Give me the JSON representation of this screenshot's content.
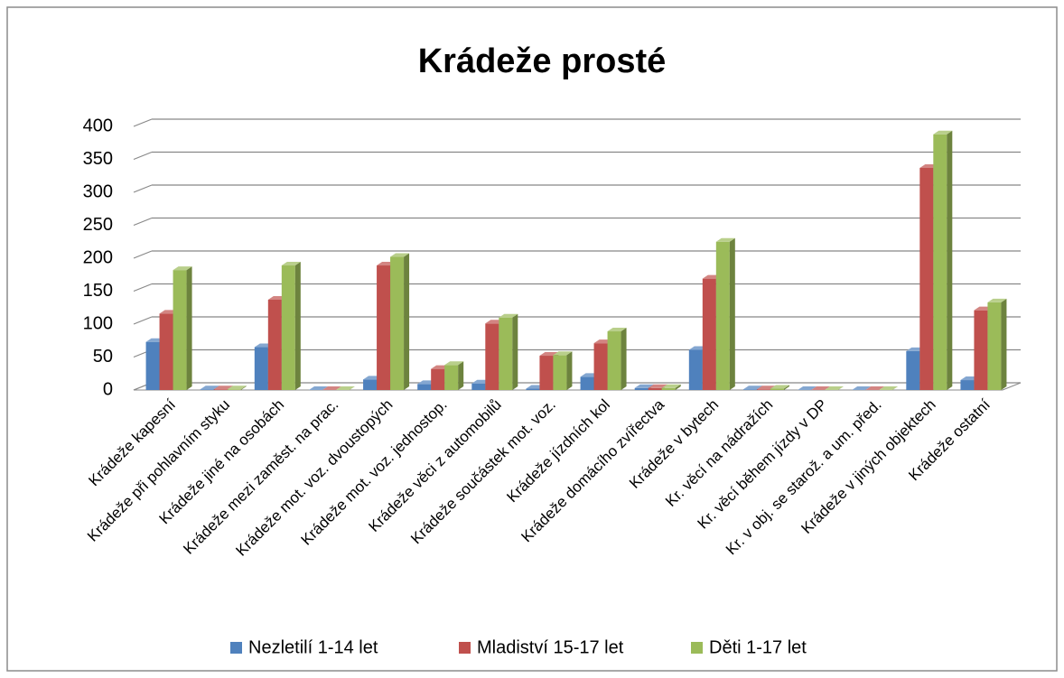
{
  "chart_data": {
    "type": "bar3d",
    "title": "Krádeže prosté",
    "categories": [
      "Krádeže kapesní",
      "Krádeže při pohlavním styku",
      "Krádeže jiné na osobách",
      "Krádeže mezi zaměst. na prac.",
      "Krádeže mot. voz. dvoustopých",
      "Krádeže mot. voz. jednostop.",
      "Krádeže věci z automobilů",
      "Krádeže součástek mot. voz.",
      "Krádeže jízdních kol",
      "Krádeže domácího zvířectva",
      "Krádeže v bytech",
      "Kr. věcí na nádražích",
      "Kr. věcí během jízdy v DP",
      "Kr. v obj. se starož. a um. před.",
      "Krádeže v jiných objektech",
      "Krádeže ostatní"
    ],
    "series": [
      {
        "name": "Nezletilí 1-14 let",
        "color": "#4f81bd",
        "values": [
          73,
          1,
          65,
          0,
          16,
          9,
          10,
          2,
          20,
          3,
          61,
          1,
          0,
          0,
          59,
          15
        ]
      },
      {
        "name": "Mladiství 15-17 let",
        "color": "#c0504d",
        "values": [
          116,
          1,
          137,
          0,
          189,
          32,
          101,
          52,
          71,
          3,
          169,
          1,
          0,
          0,
          337,
          121
        ]
      },
      {
        "name": "Děti 1-17 let",
        "color": "#9bbb59",
        "values": [
          182,
          1,
          189,
          0,
          202,
          38,
          110,
          53,
          89,
          3,
          225,
          2,
          0,
          0,
          388,
          133
        ]
      }
    ],
    "ylim": [
      0,
      400
    ],
    "yticks": [
      0,
      50,
      100,
      150,
      200,
      250,
      300,
      350,
      400
    ],
    "grid": true,
    "legend": "bottom"
  }
}
